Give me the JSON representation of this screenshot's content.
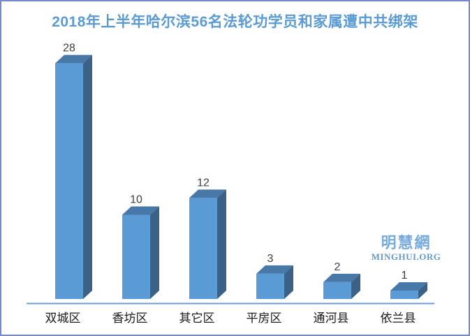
{
  "watermark": {
    "chinese": "明慧網",
    "english": "MINGHUI.ORG"
  },
  "chart_data": {
    "type": "bar",
    "style": "3d-column",
    "title": "2018年上半年哈尔滨56名法轮功学员和家属遭中共绑架",
    "categories": [
      "双城区",
      "香坊区",
      "其它区",
      "平房区",
      "通河县",
      "依兰县"
    ],
    "values": [
      28,
      10,
      12,
      3,
      2,
      1
    ],
    "total": 56,
    "xlabel": "",
    "ylabel": "",
    "ylim": [
      0,
      30
    ],
    "grid": false,
    "legend": null,
    "value_labels_shown": true,
    "colors": {
      "bar_front": "#5b9bd5",
      "bar_side": "#3c6186",
      "bar_top": "#4878a8",
      "axis_line": "#6f9bd3",
      "title_text": "#5b9bd5",
      "value_label": "#404040",
      "category_label": "#1a1a1a",
      "frame_border": "#7588cc",
      "watermark": "#77aadd"
    }
  }
}
